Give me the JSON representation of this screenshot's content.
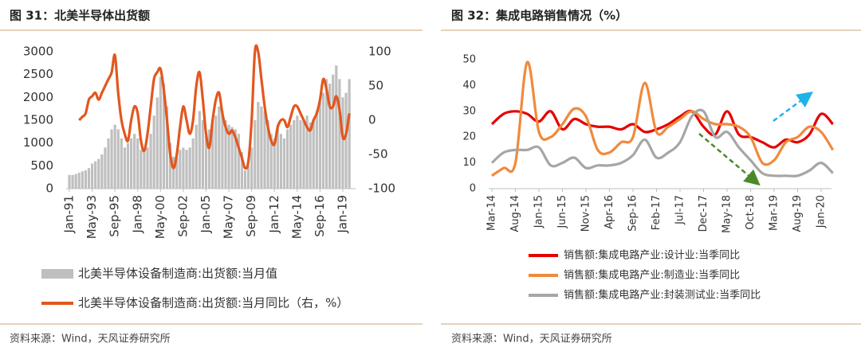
{
  "chart_data": [
    {
      "type": "bar",
      "title": "图 31：北美半导体出货额",
      "source": "资料来源：Wind，天风证券研究所",
      "categories": [
        "Jan-91",
        null,
        null,
        null,
        null,
        null,
        null,
        "May-93",
        null,
        null,
        null,
        null,
        null,
        null,
        "Sep-95",
        null,
        null,
        null,
        null,
        null,
        null,
        "Jan-98",
        null,
        null,
        null,
        null,
        null,
        null,
        "May-00",
        null,
        null,
        null,
        null,
        null,
        null,
        "Sep-02",
        null,
        null,
        null,
        null,
        null,
        null,
        "Jan-05",
        null,
        null,
        null,
        null,
        null,
        null,
        "May-07",
        null,
        null,
        null,
        null,
        null,
        null,
        "Sep-09",
        null,
        null,
        null,
        null,
        null,
        null,
        "Jan-12",
        null,
        null,
        null,
        null,
        null,
        null,
        "May-14",
        null,
        null,
        null,
        null,
        null,
        null,
        "Sep-16",
        null,
        null,
        null,
        null,
        null,
        null,
        "Jan-19",
        null,
        null
      ],
      "ylim": [
        0,
        3000
      ],
      "yticks": [
        0,
        500,
        1000,
        1500,
        2000,
        2500,
        3000
      ],
      "y2lim": [
        -100,
        100
      ],
      "y2ticks": [
        -100,
        -50,
        0,
        50,
        100
      ],
      "series": [
        {
          "name": "北美半导体设备制造商:出货额:当月值",
          "type": "bar",
          "color": "#bfbfbf",
          "values": [
            300,
            300,
            320,
            350,
            380,
            400,
            450,
            550,
            600,
            650,
            750,
            900,
            1100,
            1300,
            1400,
            1300,
            1100,
            900,
            1000,
            1100,
            1200,
            1100,
            850,
            800,
            900,
            1200,
            1600,
            2000,
            2450,
            2300,
            1800,
            1000,
            700,
            700,
            850,
            900,
            850,
            900,
            1100,
            1400,
            1700,
            1500,
            1200,
            1300,
            1500,
            1600,
            1800,
            1700,
            1500,
            1400,
            1350,
            1300,
            1200,
            800,
            400,
            500,
            900,
            1500,
            1900,
            1800,
            1700,
            1500,
            1200,
            1100,
            1400,
            1200,
            1100,
            1300,
            1400,
            1500,
            1600,
            1500,
            1500,
            1600,
            1450,
            1500,
            1700,
            1900,
            2100,
            2400,
            2300,
            2500,
            2700,
            2400,
            2000,
            2100,
            2400
          ]
        },
        {
          "name": "北美半导体设备制造商:出货额:当月同比（右，%）",
          "type": "line",
          "axis": "y2",
          "color": "#e2571f",
          "values": [
            null,
            null,
            null,
            0,
            5,
            10,
            30,
            35,
            40,
            30,
            40,
            50,
            60,
            70,
            95,
            40,
            0,
            -20,
            -30,
            0,
            20,
            10,
            -30,
            -45,
            -20,
            20,
            60,
            70,
            75,
            45,
            0,
            -50,
            -70,
            -50,
            -10,
            20,
            0,
            -20,
            0,
            50,
            70,
            30,
            -20,
            -40,
            0,
            30,
            40,
            10,
            -10,
            -20,
            -15,
            -25,
            -40,
            -55,
            -70,
            -60,
            0,
            100,
            100,
            60,
            20,
            -10,
            -30,
            -35,
            -10,
            0,
            0,
            -10,
            5,
            20,
            20,
            10,
            0,
            -10,
            -15,
            0,
            10,
            30,
            60,
            45,
            20,
            20,
            35,
            15,
            -25,
            -20,
            10
          ]
        }
      ]
    },
    {
      "type": "line",
      "title": "图 32：集成电路销售情况（%）",
      "source": "资料来源：Wind，天风证券研究所",
      "categories": [
        "Mar-14",
        null,
        "Aug-14",
        null,
        "Jan-15",
        null,
        "Jun-15",
        null,
        "Nov-15",
        null,
        "Apr-16",
        null,
        "Sep-16",
        null,
        "Feb-17",
        null,
        "Jul-17",
        null,
        "Dec-17",
        null,
        "May-18",
        null,
        "Oct-18",
        null,
        "Mar-19",
        null,
        "Aug-19",
        null,
        "Jan-20",
        null
      ],
      "ylim": [
        0,
        50
      ],
      "yticks": [
        0,
        10,
        20,
        30,
        40,
        50
      ],
      "series": [
        {
          "name": "销售额:集成电路产业:设计业:当季同比",
          "color": "#e60000",
          "values": [
            25,
            29,
            30,
            29,
            26,
            30,
            23,
            27,
            25,
            24,
            24,
            23,
            25,
            22,
            23,
            25,
            28,
            30,
            24,
            21,
            30,
            21,
            20,
            18,
            16,
            19,
            18,
            21,
            29,
            25
          ]
        },
        {
          "name": "销售额:集成电路产业:制造业:当季同比",
          "color": "#f08a3c",
          "values": [
            5,
            8,
            10,
            49,
            22,
            20,
            25,
            31,
            28,
            15,
            14,
            18,
            20,
            41,
            22,
            24,
            27,
            30,
            27,
            25,
            25,
            24,
            20,
            10,
            11,
            18,
            20,
            24,
            22,
            15
          ]
        },
        {
          "name": "销售额:集成电路产业:封装测试业:当季同比",
          "color": "#a6a6a6",
          "values": [
            10,
            14,
            15,
            15,
            16,
            9,
            10,
            12,
            8,
            9,
            9,
            10,
            13,
            19,
            12,
            14,
            18,
            28,
            30,
            20,
            22,
            16,
            11,
            6,
            5,
            5,
            5,
            7,
            10,
            6
          ]
        }
      ]
    }
  ]
}
